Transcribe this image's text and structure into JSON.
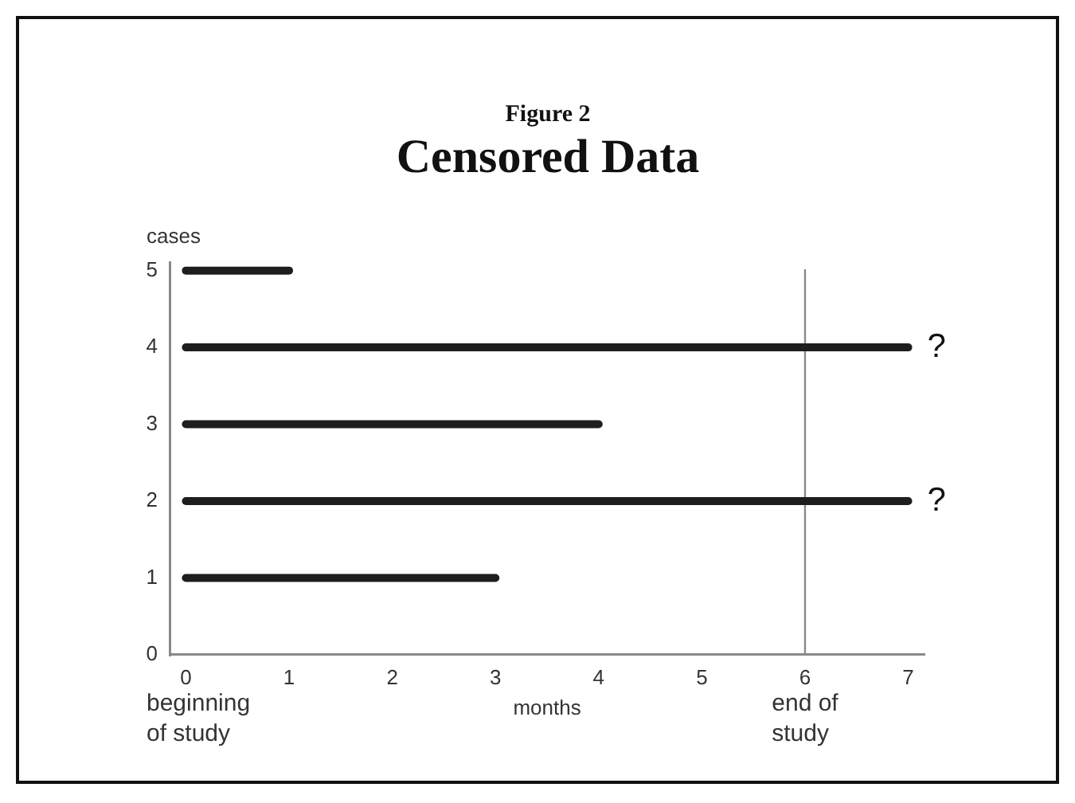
{
  "chart_data": {
    "type": "line",
    "title": "Censored Data",
    "subtitle": "Figure 2",
    "xlabel": "months",
    "ylabel": "cases",
    "series": [
      {
        "x": [
          0,
          3
        ],
        "values": [
          1,
          1
        ],
        "color": "#1e1e1e"
      },
      {
        "x": [
          0,
          7
        ],
        "values": [
          2,
          2
        ],
        "color": "#1e1e1e"
      },
      {
        "x": [
          0,
          4
        ],
        "values": [
          3,
          3
        ],
        "color": "#1e1e1e"
      },
      {
        "x": [
          0,
          7
        ],
        "values": [
          4,
          4
        ],
        "color": "#1e1e1e"
      },
      {
        "x": [
          0,
          1
        ],
        "values": [
          5,
          5
        ],
        "color": "#1e1e1e"
      }
    ],
    "xlim": [
      -0.15,
      7.15
    ],
    "xticks": [
      0,
      1,
      2,
      3,
      4,
      5,
      6,
      7
    ],
    "ylim": [
      0,
      5.1
    ],
    "yticks": [
      0,
      1,
      2,
      3,
      4,
      5
    ],
    "ref_lines": [
      {
        "axis": "x",
        "value": 6,
        "label": "end of study",
        "color": "#8a8a8a"
      }
    ],
    "annotations": [
      "beginning of study",
      {
        "text": "?",
        "x": 7,
        "y": 4
      },
      {
        "text": "?",
        "x": 7,
        "y": 2
      }
    ],
    "marker": "none"
  }
}
